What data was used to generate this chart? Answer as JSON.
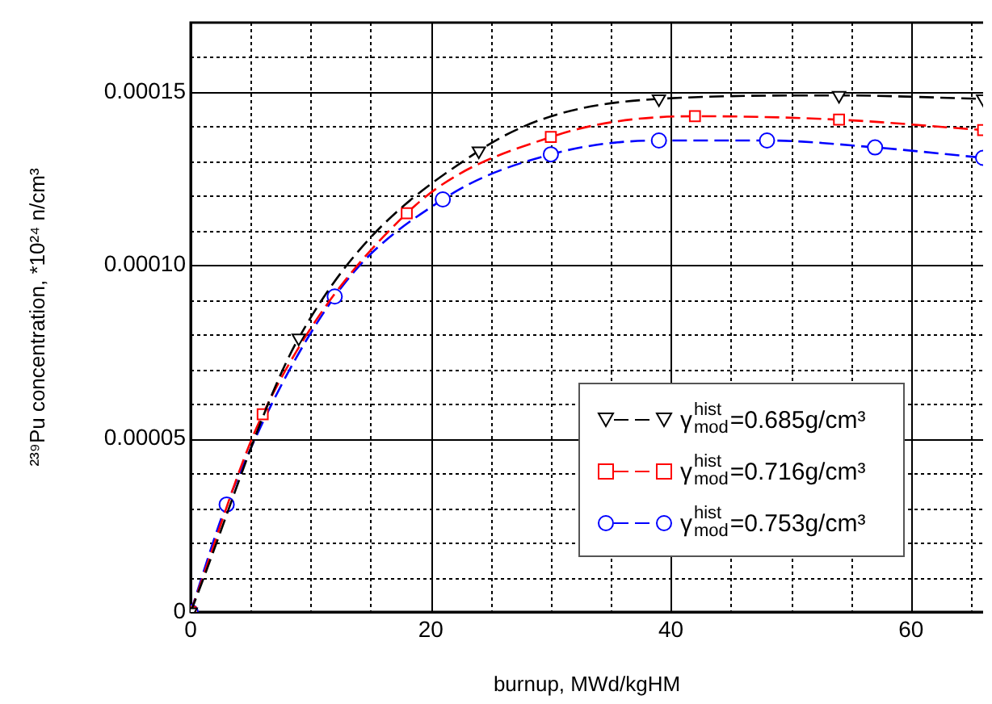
{
  "chart_data": {
    "type": "line",
    "xlabel": "burnup, MWd/kgHM",
    "ylabel": "²³⁹Pu concentration, *10²⁴ n/cm³",
    "xlim": [
      0,
      66
    ],
    "ylim": [
      0,
      0.00017
    ],
    "xticks": [
      0,
      {
        "value": 5,
        "label": null
      },
      {
        "value": 10,
        "label": null
      },
      {
        "value": 15,
        "label": null
      },
      20,
      {
        "value": 25,
        "label": null
      },
      {
        "value": 30,
        "label": null
      },
      {
        "value": 35,
        "label": null
      },
      40,
      {
        "value": 45,
        "label": null
      },
      {
        "value": 50,
        "label": null
      },
      {
        "value": 55,
        "label": null
      },
      60,
      {
        "value": 65,
        "label": null
      }
    ],
    "yticks": [
      0,
      {
        "value": 1e-05,
        "label": null
      },
      {
        "value": 2e-05,
        "label": null
      },
      {
        "value": 3e-05,
        "label": null
      },
      {
        "value": 4e-05,
        "label": null
      },
      {
        "value": 5e-05,
        "label": "0.00005"
      },
      {
        "value": 6e-05,
        "label": null
      },
      {
        "value": 7e-05,
        "label": null
      },
      {
        "value": 8e-05,
        "label": null
      },
      {
        "value": 9e-05,
        "label": null
      },
      {
        "value": 0.0001,
        "label": "0.00010"
      },
      {
        "value": 0.00011,
        "label": null
      },
      {
        "value": 0.00012,
        "label": null
      },
      {
        "value": 0.00013,
        "label": null
      },
      {
        "value": 0.00014,
        "label": null
      },
      {
        "value": 0.00015,
        "label": "0.00015"
      },
      {
        "value": 0.00016,
        "label": null
      }
    ],
    "grid": true,
    "legend": "right",
    "line_style": "dashed",
    "series": [
      {
        "name": "γ$^{hist}$$_{mod}$=0.685g/cm³",
        "color": "#000000",
        "marker": "triangle",
        "x": [
          0,
          9,
          24,
          39,
          54,
          66
        ],
        "values": [
          0,
          7.9e-05,
          0.000133,
          0.000148,
          0.000149,
          0.000148
        ]
      },
      {
        "name": "γ$^{hist}$$_{mod}$=0.716g/cm³",
        "color": "#ff0000",
        "marker": "square",
        "x": [
          0,
          6,
          18,
          30,
          42,
          54,
          66
        ],
        "values": [
          0,
          5.7e-05,
          0.000115,
          0.000137,
          0.000143,
          0.000142,
          0.000139
        ]
      },
      {
        "name": "γ$^{hist}$$_{mod}$=0.753g/cm³",
        "color": "#0000ff",
        "marker": "circle",
        "x": [
          0,
          3,
          12,
          21,
          30,
          39,
          48,
          57,
          66
        ],
        "values": [
          0,
          3.1e-05,
          9.1e-05,
          0.000119,
          0.000132,
          0.000136,
          0.000136,
          0.000134,
          0.000131
        ]
      }
    ]
  }
}
